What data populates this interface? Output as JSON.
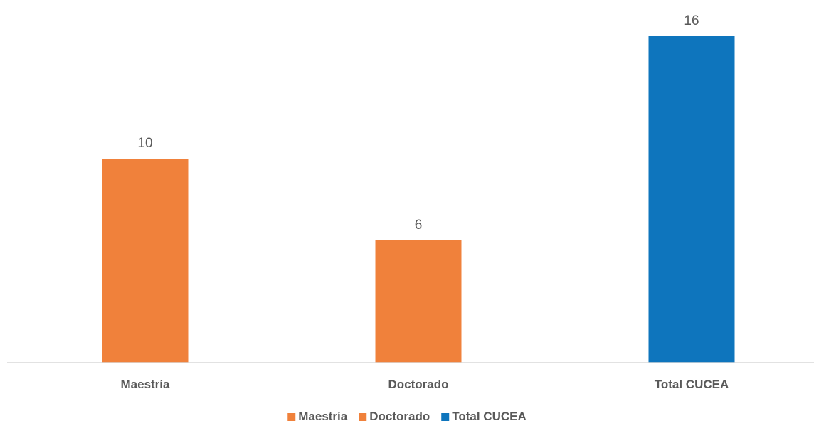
{
  "chart_data": {
    "type": "bar",
    "categories": [
      "Maestría",
      "Doctorado",
      "Total CUCEA"
    ],
    "values": [
      10,
      6,
      16
    ],
    "bar_colors": [
      "#F0813B",
      "#F0813B",
      "#0E75BD"
    ],
    "title": "",
    "xlabel": "",
    "ylabel": "",
    "ylim": [
      0,
      16
    ],
    "grid": false,
    "legend": {
      "placement": "bottom",
      "entries": [
        {
          "label": "Maestría",
          "color": "#F0813B"
        },
        {
          "label": "Doctorado",
          "color": "#F0813B"
        },
        {
          "label": "Total CUCEA",
          "color": "#0E75BD"
        }
      ]
    }
  }
}
